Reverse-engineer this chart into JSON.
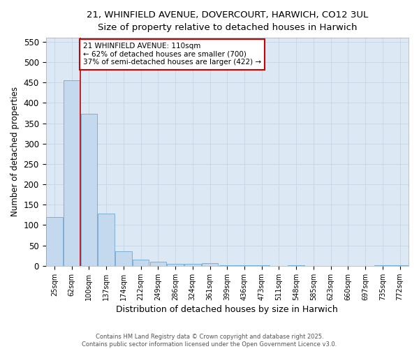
{
  "title_line1": "21, WHINFIELD AVENUE, DOVERCOURT, HARWICH, CO12 3UL",
  "title_line2": "Size of property relative to detached houses in Harwich",
  "xlabel": "Distribution of detached houses by size in Harwich",
  "ylabel": "Number of detached properties",
  "categories": [
    "25sqm",
    "62sqm",
    "100sqm",
    "137sqm",
    "174sqm",
    "212sqm",
    "249sqm",
    "286sqm",
    "324sqm",
    "361sqm",
    "399sqm",
    "436sqm",
    "473sqm",
    "511sqm",
    "548sqm",
    "585sqm",
    "623sqm",
    "660sqm",
    "697sqm",
    "735sqm",
    "772sqm"
  ],
  "values": [
    120,
    455,
    373,
    128,
    35,
    15,
    10,
    5,
    4,
    7,
    1,
    1,
    1,
    0,
    1,
    0,
    0,
    0,
    0,
    1,
    2
  ],
  "bar_color": "#c5d9ee",
  "bar_edge_color": "#7bafd4",
  "grid_color": "#c8d8e8",
  "plot_bg_color": "#dce9f5",
  "fig_bg_color": "#ffffff",
  "vline_x": 1.5,
  "vline_color": "#cc0000",
  "annotation_text": "21 WHINFIELD AVENUE: 110sqm\n← 62% of detached houses are smaller (700)\n37% of semi-detached houses are larger (422) →",
  "annotation_box_color": "#ffffff",
  "annotation_box_edge_color": "#cc0000",
  "ylim": [
    0,
    560
  ],
  "yticks": [
    0,
    50,
    100,
    150,
    200,
    250,
    300,
    350,
    400,
    450,
    500,
    550
  ],
  "footer_line1": "Contains HM Land Registry data © Crown copyright and database right 2025.",
  "footer_line2": "Contains public sector information licensed under the Open Government Licence v3.0."
}
